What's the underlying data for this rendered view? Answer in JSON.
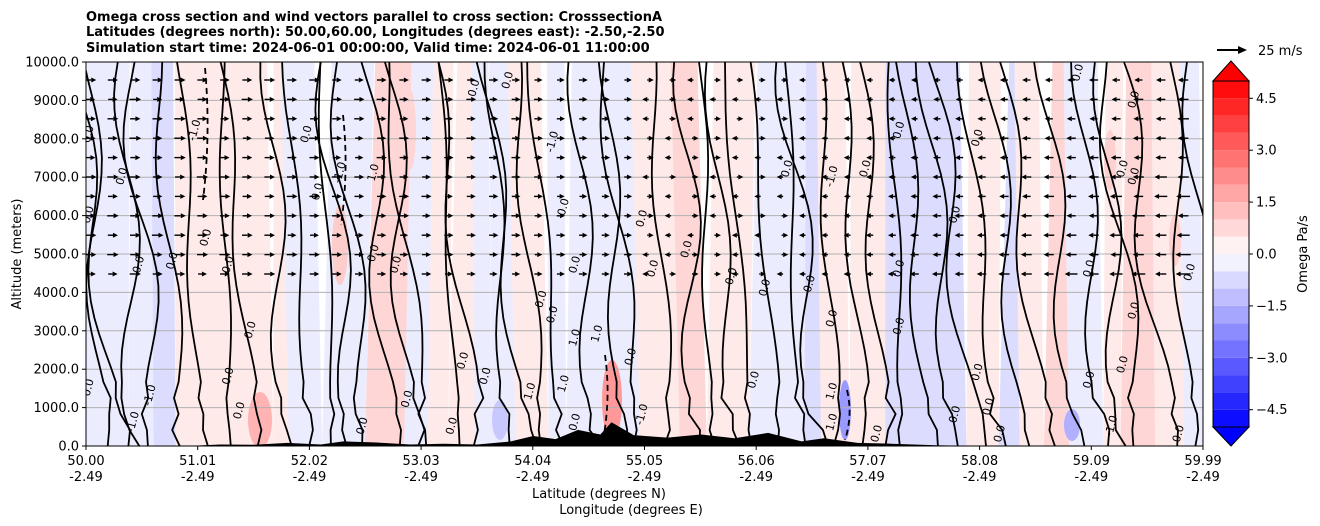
{
  "chart_data": {
    "type": "heatmap",
    "title_lines": [
      "Omega cross section and wind vectors parallel to cross section: CrosssectionA",
      "Latitudes (degrees north): 50.00,60.00, Longitudes (degrees east): -2.50,-2.50",
      "Simulation start time: 2024-06-01 00:00:00, Valid time: 2024-06-01 11:00:00"
    ],
    "ylabel": "Altitude (meters)",
    "xlabel_lines": [
      "Latitude (degrees N)",
      "Longitude (degrees E)"
    ],
    "xlim": [
      50.0,
      59.99
    ],
    "ylim": [
      0,
      10000
    ],
    "x_ticks": [
      {
        "lat": "50.00",
        "lon": "-2.49"
      },
      {
        "lat": "51.01",
        "lon": "-2.49"
      },
      {
        "lat": "52.02",
        "lon": "-2.49"
      },
      {
        "lat": "53.03",
        "lon": "-2.49"
      },
      {
        "lat": "54.04",
        "lon": "-2.49"
      },
      {
        "lat": "55.05",
        "lon": "-2.49"
      },
      {
        "lat": "56.06",
        "lon": "-2.49"
      },
      {
        "lat": "57.07",
        "lon": "-2.49"
      },
      {
        "lat": "58.08",
        "lon": "-2.49"
      },
      {
        "lat": "59.09",
        "lon": "-2.49"
      },
      {
        "lat": "59.99",
        "lon": "-2.49"
      }
    ],
    "y_ticks": [
      "0.0",
      "1000.0",
      "2000.0",
      "3000.0",
      "4000.0",
      "5000.0",
      "6000.0",
      "7000.0",
      "8000.0",
      "9000.0",
      "10000.0"
    ],
    "grid": true,
    "colorbar": {
      "label": "Omega Pa/s",
      "ticks": [
        "4.5",
        "3.0",
        "1.5",
        "0.0",
        "−1.5",
        "−3.0",
        "−4.5"
      ],
      "tick_values": [
        4.5,
        3.0,
        1.5,
        0.0,
        -1.5,
        -3.0,
        -4.5
      ],
      "range": [
        -5.0,
        5.0
      ],
      "extend": "both",
      "colormap": "bwr",
      "low_color": "#0000ff",
      "mid_color": "#ffffff",
      "high_color": "#ff0000"
    },
    "reference_vector": {
      "label": "25 m/s",
      "speed": 25
    },
    "contour_labels": [
      {
        "text": "0.0",
        "x": 50.05,
        "y": 1500
      },
      {
        "text": "0.0",
        "x": 50.05,
        "y": 6000
      },
      {
        "text": "0.0",
        "x": 50.05,
        "y": 8100
      },
      {
        "text": "0.0",
        "x": 50.35,
        "y": 7000
      },
      {
        "text": "0.0",
        "x": 50.5,
        "y": 4700
      },
      {
        "text": "-1.0",
        "x": 50.45,
        "y": 600
      },
      {
        "text": "-1.0",
        "x": 50.6,
        "y": 1300
      },
      {
        "text": "0.0",
        "x": 50.8,
        "y": 4800
      },
      {
        "text": "-1.0",
        "x": 51.0,
        "y": 8200
      },
      {
        "text": "0.0",
        "x": 51.1,
        "y": 5400
      },
      {
        "text": "0.0",
        "x": 51.3,
        "y": 4700
      },
      {
        "text": "0.0",
        "x": 51.5,
        "y": 3000
      },
      {
        "text": "0.0",
        "x": 51.3,
        "y": 1800
      },
      {
        "text": "0.0",
        "x": 51.4,
        "y": 900
      },
      {
        "text": "0.0",
        "x": 52.0,
        "y": 8100
      },
      {
        "text": "0.0",
        "x": 52.1,
        "y": 6600
      },
      {
        "text": "0.0",
        "x": 52.5,
        "y": 500
      },
      {
        "text": "-1.0",
        "x": 52.3,
        "y": 7100
      },
      {
        "text": "1.0",
        "x": 52.6,
        "y": 7100
      },
      {
        "text": "0.0",
        "x": 52.6,
        "y": 5000
      },
      {
        "text": "0.0",
        "x": 52.8,
        "y": 4700
      },
      {
        "text": "0.0",
        "x": 52.9,
        "y": 1200
      },
      {
        "text": "0.0",
        "x": 53.3,
        "y": 500
      },
      {
        "text": "0.0",
        "x": 53.4,
        "y": 2200
      },
      {
        "text": "0.0",
        "x": 53.5,
        "y": 9300
      },
      {
        "text": "0.0",
        "x": 53.6,
        "y": 1800
      },
      {
        "text": "0.0",
        "x": 53.8,
        "y": 9500
      },
      {
        "text": "1.0",
        "x": 54.0,
        "y": 1400
      },
      {
        "text": "0.0",
        "x": 54.1,
        "y": 3800
      },
      {
        "text": "0.0",
        "x": 54.2,
        "y": 3400
      },
      {
        "text": "0.0",
        "x": 54.3,
        "y": 6200
      },
      {
        "text": "0.0",
        "x": 54.4,
        "y": 4700
      },
      {
        "text": "1.0",
        "x": 54.4,
        "y": 2800
      },
      {
        "text": "1.0",
        "x": 54.3,
        "y": 1600
      },
      {
        "text": "0.0",
        "x": 54.4,
        "y": 600
      },
      {
        "text": "-1.0",
        "x": 54.2,
        "y": 7900
      },
      {
        "text": "1.0",
        "x": 54.6,
        "y": 2900
      },
      {
        "text": "0.0",
        "x": 55.0,
        "y": 5900
      },
      {
        "text": "0.0",
        "x": 54.9,
        "y": 2300
      },
      {
        "text": "0.0",
        "x": 55.1,
        "y": 4600
      },
      {
        "text": "-1.0",
        "x": 55.0,
        "y": 800
      },
      {
        "text": "0.0",
        "x": 55.4,
        "y": 5100
      },
      {
        "text": "0.0",
        "x": 55.8,
        "y": 4400
      },
      {
        "text": "0.0",
        "x": 56.0,
        "y": 1700
      },
      {
        "text": "0.0",
        "x": 56.1,
        "y": 4100
      },
      {
        "text": "0.0",
        "x": 56.3,
        "y": 7200
      },
      {
        "text": "0.0",
        "x": 56.5,
        "y": 4200
      },
      {
        "text": "0.0",
        "x": 56.7,
        "y": 3300
      },
      {
        "text": "-1.0",
        "x": 56.7,
        "y": 7000
      },
      {
        "text": "1.0",
        "x": 56.7,
        "y": 1400
      },
      {
        "text": "1.0",
        "x": 56.7,
        "y": 600
      },
      {
        "text": "0.0",
        "x": 57.0,
        "y": 7200
      },
      {
        "text": "0.0",
        "x": 57.1,
        "y": 300
      },
      {
        "text": "0.0",
        "x": 57.3,
        "y": 4600
      },
      {
        "text": "0.0",
        "x": 57.3,
        "y": 3100
      },
      {
        "text": "0.0",
        "x": 57.3,
        "y": 8200
      },
      {
        "text": "0.0",
        "x": 57.8,
        "y": 6000
      },
      {
        "text": "0.0",
        "x": 58.0,
        "y": 8000
      },
      {
        "text": "0.0",
        "x": 57.8,
        "y": 800
      },
      {
        "text": "0.0",
        "x": 58.0,
        "y": 1900
      },
      {
        "text": "0.0",
        "x": 58.1,
        "y": 1000
      },
      {
        "text": "0.0",
        "x": 58.2,
        "y": 300
      },
      {
        "text": "0.0",
        "x": 58.9,
        "y": 9700
      },
      {
        "text": "0.0",
        "x": 59.0,
        "y": 1700
      },
      {
        "text": "0.0",
        "x": 59.0,
        "y": 4600
      },
      {
        "text": "0.0",
        "x": 59.3,
        "y": 7200
      },
      {
        "text": "0.0",
        "x": 59.4,
        "y": 9000
      },
      {
        "text": "0.0",
        "x": 59.4,
        "y": 7000
      },
      {
        "text": "0.0",
        "x": 59.4,
        "y": 3500
      },
      {
        "text": "0.0",
        "x": 59.3,
        "y": 2100
      },
      {
        "text": "-1.0",
        "x": 59.2,
        "y": 500
      },
      {
        "text": "0.0",
        "x": 59.8,
        "y": 300
      },
      {
        "text": "0.0",
        "x": 59.9,
        "y": 4500
      }
    ]
  }
}
